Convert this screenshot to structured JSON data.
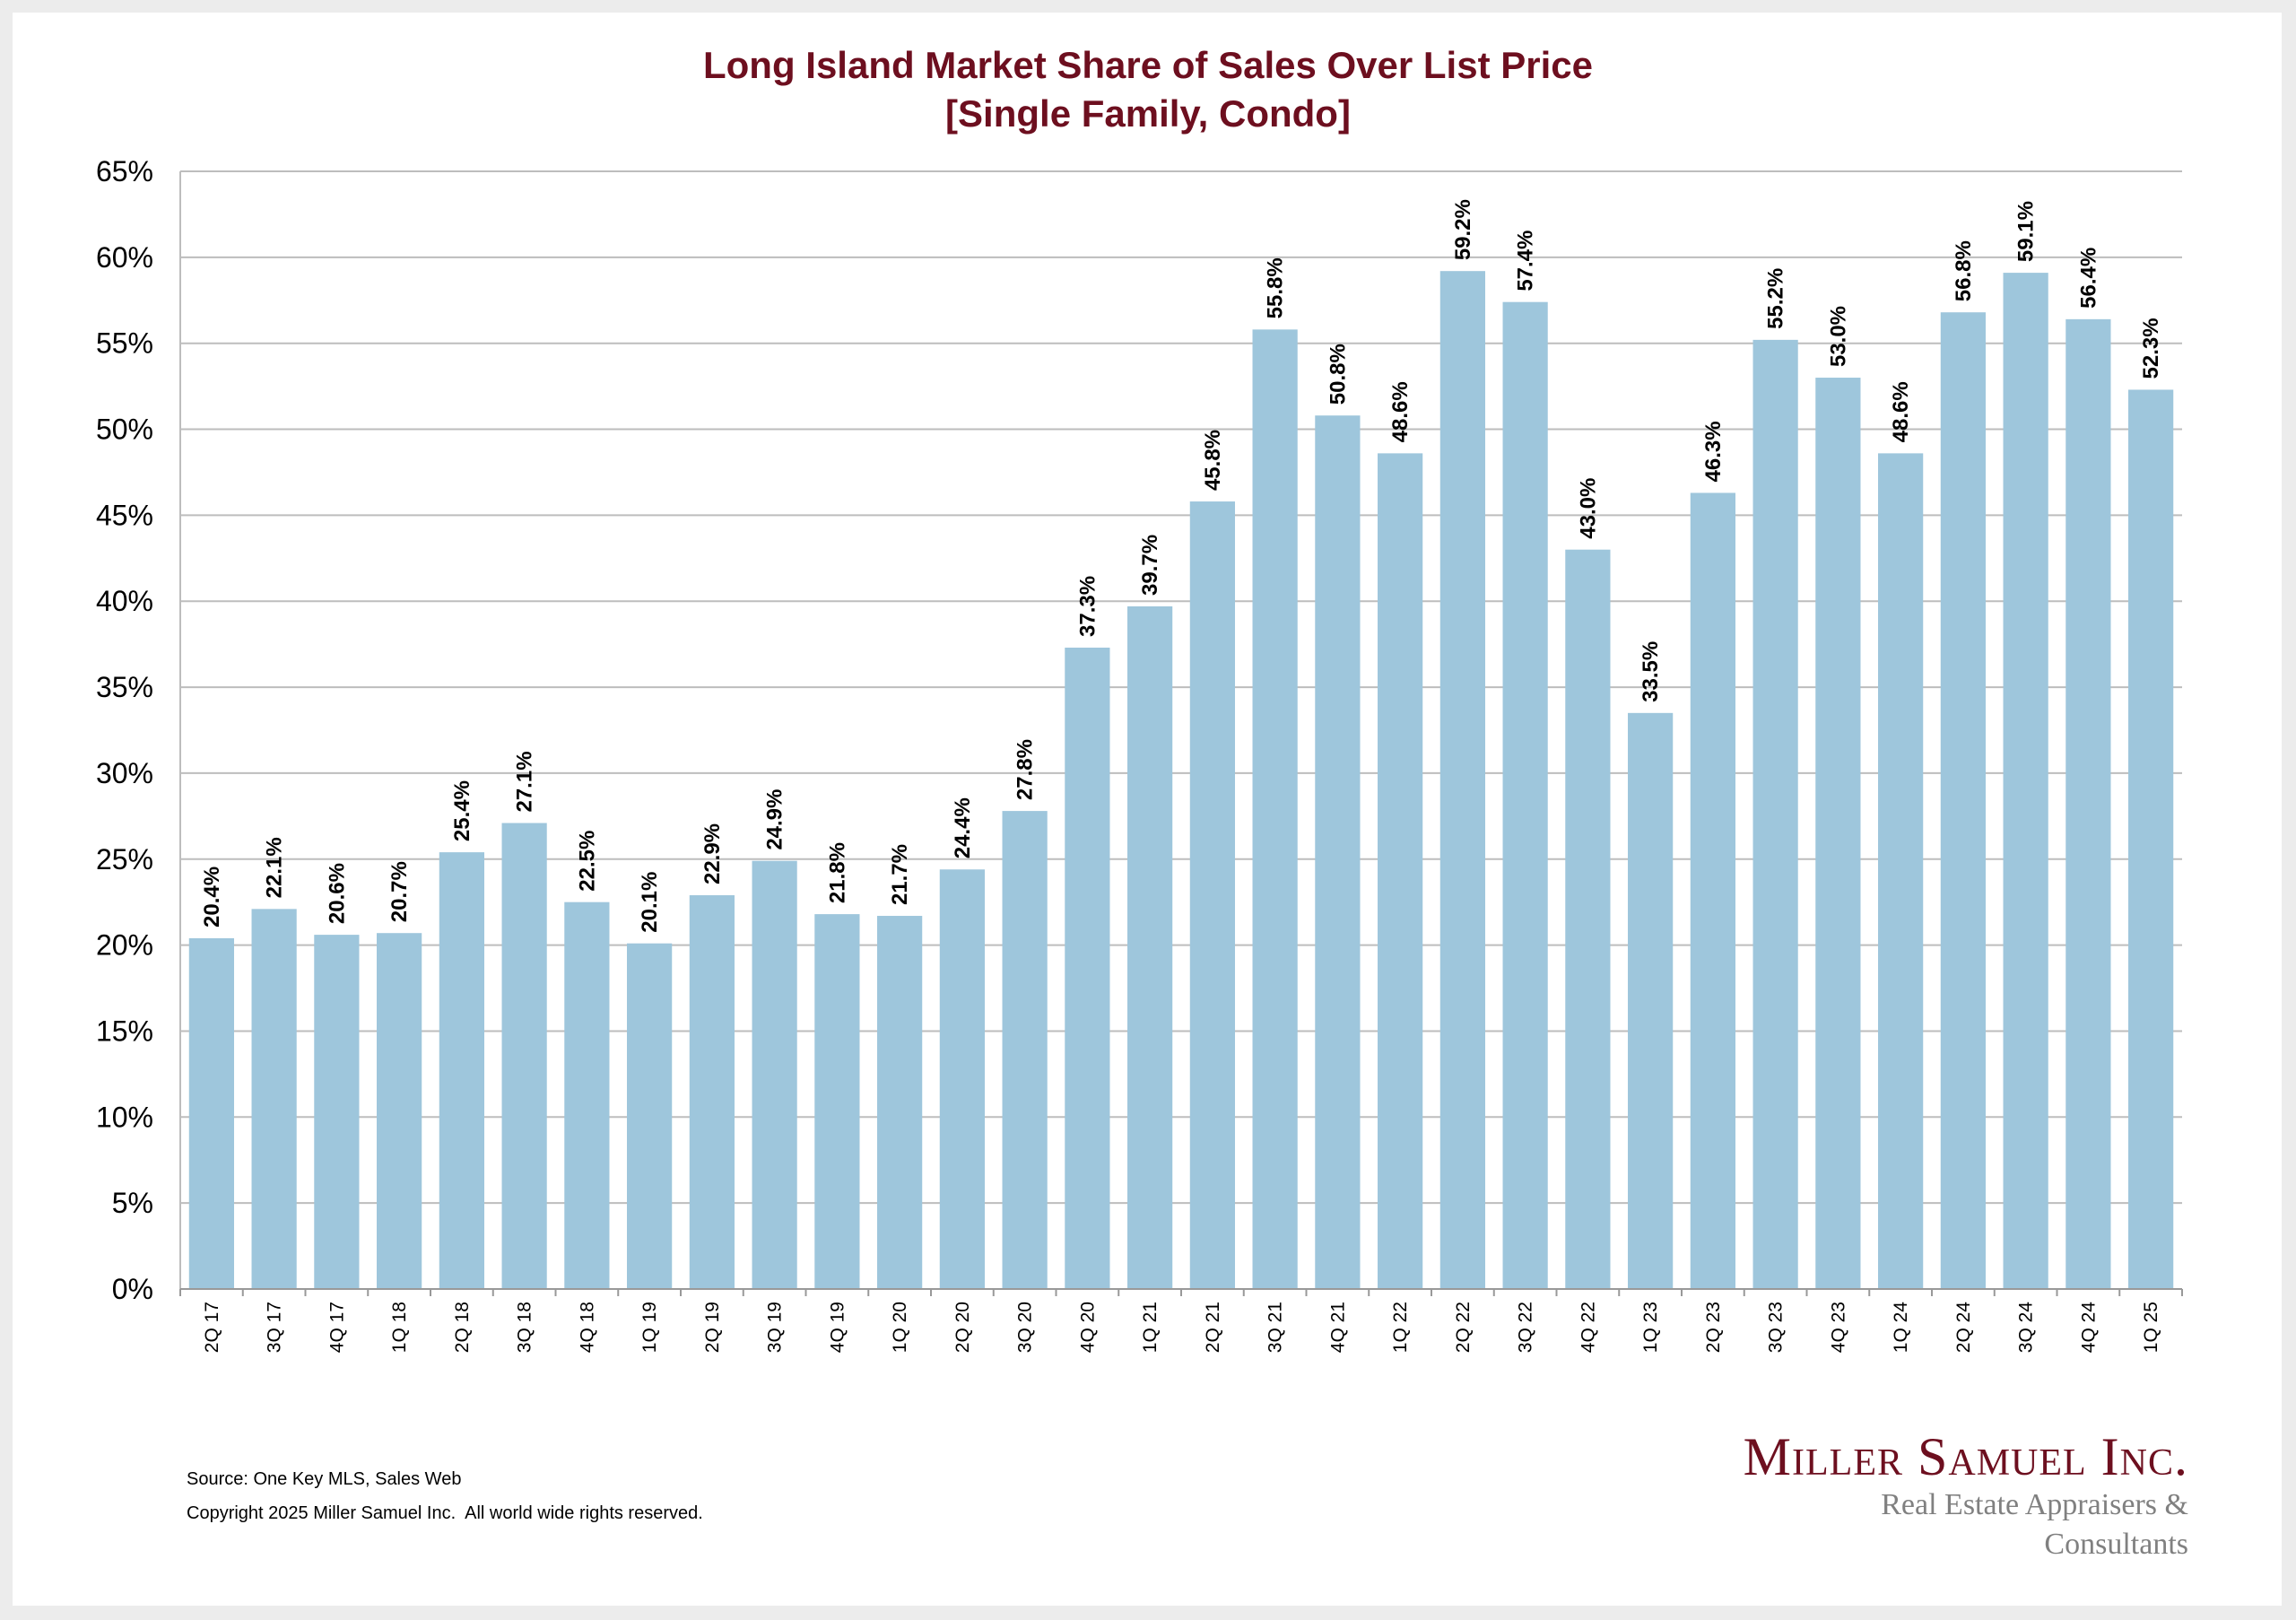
{
  "chart_data": {
    "type": "bar",
    "title": "Long Island Market Share of Sales Over List Price",
    "subtitle": "[Single Family, Condo]",
    "xlabel": "",
    "ylabel": "",
    "ylim": [
      0,
      65
    ],
    "yticks": [
      0,
      5,
      10,
      15,
      20,
      25,
      30,
      35,
      40,
      45,
      50,
      55,
      60,
      65
    ],
    "ytick_labels": [
      "0%",
      "5%",
      "10%",
      "15%",
      "20%",
      "25%",
      "30%",
      "35%",
      "40%",
      "45%",
      "50%",
      "55%",
      "60%",
      "65%"
    ],
    "grid": true,
    "bar_color": "#9ec6dc",
    "categories": [
      "2Q 17",
      "3Q 17",
      "4Q 17",
      "1Q 18",
      "2Q 18",
      "3Q 18",
      "4Q 18",
      "1Q 19",
      "2Q 19",
      "3Q 19",
      "4Q 19",
      "1Q 20",
      "2Q 20",
      "3Q 20",
      "4Q 20",
      "1Q 21",
      "2Q 21",
      "3Q 21",
      "4Q 21",
      "1Q 22",
      "2Q 22",
      "3Q 22",
      "4Q 22",
      "1Q 23",
      "2Q 23",
      "3Q 23",
      "4Q 23",
      "1Q 24",
      "2Q 24",
      "3Q 24",
      "4Q 24",
      "1Q 25"
    ],
    "values": [
      20.4,
      22.1,
      20.6,
      20.7,
      25.4,
      27.1,
      22.5,
      20.1,
      22.9,
      24.9,
      21.8,
      21.7,
      24.4,
      27.8,
      37.3,
      39.7,
      45.8,
      55.8,
      50.8,
      48.6,
      59.2,
      57.4,
      43.0,
      33.5,
      46.3,
      55.2,
      53.0,
      48.6,
      56.8,
      59.1,
      56.4,
      52.3
    ],
    "data_labels": [
      "20.4%",
      "22.1%",
      "20.6%",
      "20.7%",
      "25.4%",
      "27.1%",
      "22.5%",
      "20.1%",
      "22.9%",
      "24.9%",
      "21.8%",
      "21.7%",
      "24.4%",
      "27.8%",
      "37.3%",
      "39.7%",
      "45.8%",
      "55.8%",
      "50.8%",
      "48.6%",
      "59.2%",
      "57.4%",
      "43.0%",
      "33.5%",
      "46.3%",
      "55.2%",
      "53.0%",
      "48.6%",
      "56.8%",
      "59.1%",
      "56.4%",
      "52.3%"
    ]
  },
  "footer": {
    "source": "Source: One Key MLS, Sales Web",
    "copyright": "Copyright 2025 Miller Samuel Inc.  All world wide rights reserved."
  },
  "logo": {
    "name": "Miller Samuel Inc.",
    "tagline": "Real Estate Appraisers & Consultants"
  },
  "colors": {
    "title": "#6d0f1f",
    "bar": "#9ec6dc",
    "grid": "#bdbdbd"
  }
}
